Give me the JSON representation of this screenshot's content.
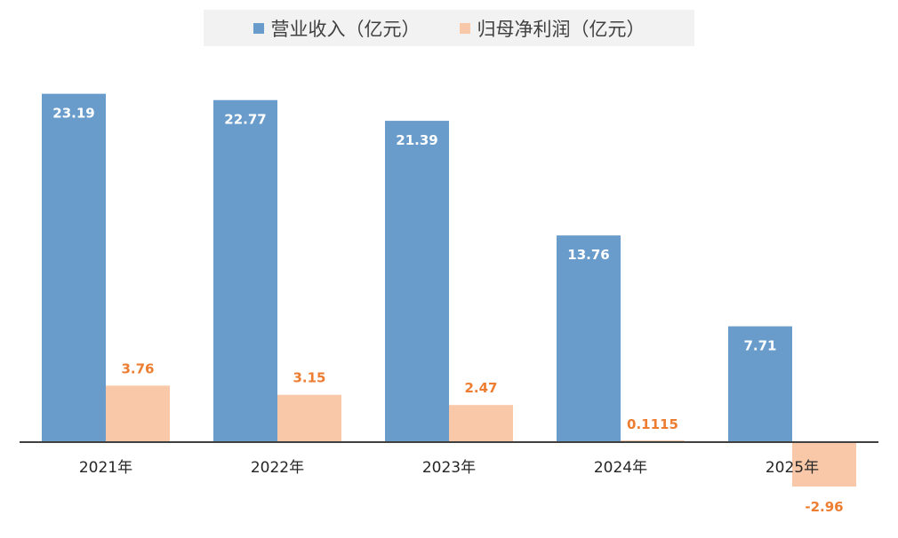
{
  "chart_data": {
    "type": "bar",
    "categories": [
      "2021年",
      "2022年",
      "2023年",
      "2024年",
      "2025年"
    ],
    "series": [
      {
        "name": "营业收入（亿元）",
        "values": [
          23.19,
          22.77,
          21.39,
          13.76,
          7.71
        ],
        "labels": [
          "23.19",
          "22.77",
          "21.39",
          "13.76",
          "7.71"
        ],
        "color": "#6a9ccb",
        "label_color": "#ffffff"
      },
      {
        "name": "归母净利润（亿元）",
        "values": [
          3.76,
          3.15,
          2.47,
          0.1115,
          -2.96
        ],
        "labels": [
          "3.76",
          "3.15",
          "2.47",
          "0.1115",
          "-2.96"
        ],
        "color": "#f8c8a8",
        "label_color": "#ed7d31"
      }
    ],
    "legend_position": "top-center",
    "grid": false
  }
}
